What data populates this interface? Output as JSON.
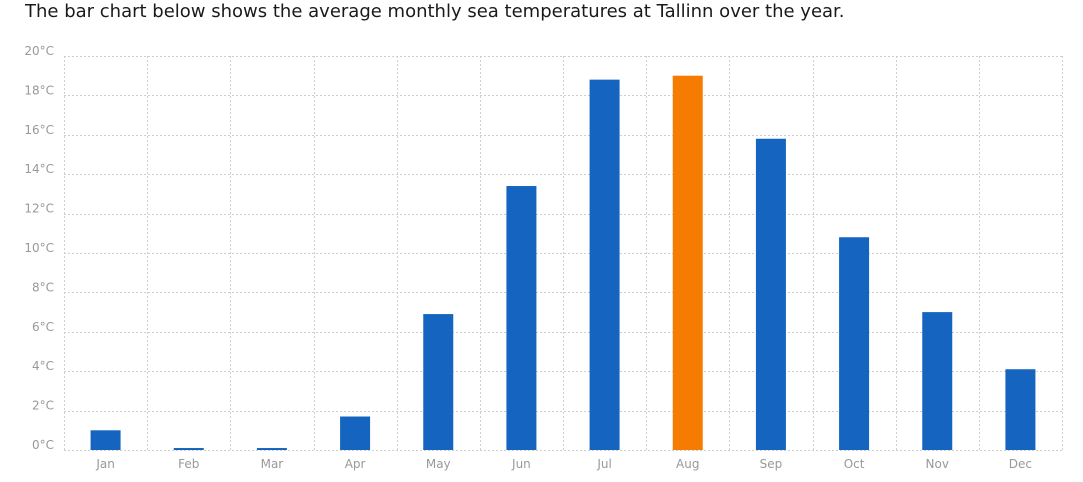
{
  "intro_text": "The bar chart below shows the average monthly sea temperatures at Tallinn over the year.",
  "chart_data": {
    "type": "bar",
    "title": "",
    "xlabel": "",
    "ylabel": "",
    "categories": [
      "Jan",
      "Feb",
      "Mar",
      "Apr",
      "May",
      "Jun",
      "Jul",
      "Aug",
      "Sep",
      "Oct",
      "Nov",
      "Dec"
    ],
    "values": [
      1.0,
      0.1,
      0.1,
      1.7,
      6.9,
      13.4,
      18.8,
      19.0,
      15.8,
      10.8,
      7.0,
      4.1
    ],
    "ylim": [
      0,
      20
    ],
    "yticks": [
      0,
      2,
      4,
      6,
      8,
      10,
      12,
      14,
      16,
      18,
      20
    ],
    "ytick_labels": [
      "0°C",
      "2°C",
      "4°C",
      "6°C",
      "8°C",
      "10°C",
      "12°C",
      "14°C",
      "16°C",
      "18°C",
      "20°C"
    ],
    "grid": true,
    "highlight_category": "Aug",
    "colors": {
      "bar": "#1565c0",
      "highlight": "#f57c00",
      "grid": "#cfcfcf",
      "tick_text": "#999999"
    }
  }
}
